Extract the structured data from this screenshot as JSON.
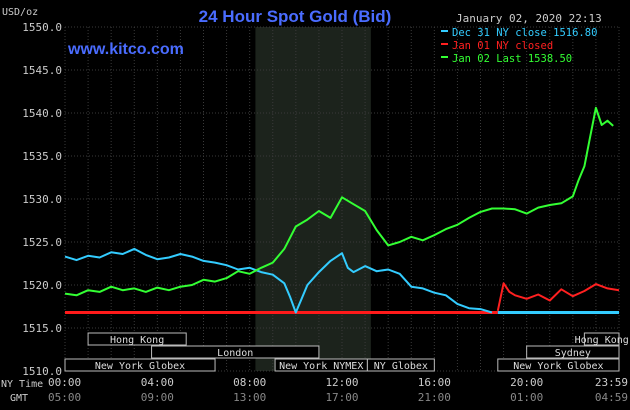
{
  "chart_data": {
    "type": "line",
    "title": "24 Hour Spot Gold (Bid)",
    "website": "www.kitco.com",
    "date_label": "January 02, 2020 22:13",
    "y_unit": "USD/oz",
    "ylim": [
      1510.0,
      1550.0
    ],
    "y_ticks": [
      "1550.0",
      "1545.0",
      "1540.0",
      "1535.0",
      "1530.0",
      "1525.0",
      "1520.0",
      "1515.0",
      "1510.0"
    ],
    "x_row_labels": {
      "ny": "NY Time",
      "gmt": "GMT"
    },
    "x_ticks_ny": [
      "00:00",
      "04:00",
      "08:00",
      "12:00",
      "16:00",
      "20:00",
      "23:59"
    ],
    "x_ticks_gmt": [
      "05:00",
      "09:00",
      "13:00",
      "17:00",
      "21:00",
      "01:00",
      "04:59"
    ],
    "legend": [
      {
        "text": "Dec 31 NY close 1516.80",
        "color": "#33ccff"
      },
      {
        "text": "Jan 01 NY closed",
        "color": "#ff2020"
      },
      {
        "text": "Jan 02 Last 1538.50",
        "color": "#33ff33"
      }
    ],
    "sessions": [
      {
        "label": "Hong Kong",
        "start": 2.0,
        "end": 10.5
      },
      {
        "label": "London",
        "start": 7.5,
        "end": 22.0
      },
      {
        "label": "New York Globex",
        "start": 0.0,
        "end": 13.0
      },
      {
        "label": "New York NYMEX",
        "start": 18.2,
        "end": 26.2
      },
      {
        "label": "NY Globex",
        "start": 26.2,
        "end": 32.0
      },
      {
        "label": "Hong Kong",
        "start": 45.0,
        "end": 48.0
      },
      {
        "label": "Sydney",
        "start": 40.0,
        "end": 48.0
      },
      {
        "label": "New York Globex",
        "start": 37.5,
        "end": 48.0
      }
    ],
    "highlight_range": [
      16.5,
      26.5
    ],
    "series": [
      {
        "name": "Dec 31",
        "color": "#33ccff",
        "points": [
          [
            0,
            1523.3
          ],
          [
            1,
            1522.9
          ],
          [
            2,
            1523.4
          ],
          [
            3,
            1523.2
          ],
          [
            4,
            1523.8
          ],
          [
            5,
            1523.6
          ],
          [
            6,
            1524.2
          ],
          [
            7,
            1523.5
          ],
          [
            8,
            1523.0
          ],
          [
            9,
            1523.2
          ],
          [
            10,
            1523.6
          ],
          [
            11,
            1523.3
          ],
          [
            12,
            1522.8
          ],
          [
            13,
            1522.6
          ],
          [
            14,
            1522.3
          ],
          [
            15,
            1521.8
          ],
          [
            16,
            1522.0
          ],
          [
            17,
            1521.5
          ],
          [
            18,
            1521.2
          ],
          [
            19,
            1520.2
          ],
          [
            19.5,
            1518.6
          ],
          [
            20,
            1516.8
          ],
          [
            20.5,
            1518.4
          ],
          [
            21,
            1520.0
          ],
          [
            22,
            1521.5
          ],
          [
            23,
            1522.8
          ],
          [
            24,
            1523.7
          ],
          [
            24.5,
            1522.0
          ],
          [
            25,
            1521.5
          ],
          [
            26,
            1522.2
          ],
          [
            27,
            1521.6
          ],
          [
            28,
            1521.8
          ],
          [
            29,
            1521.3
          ],
          [
            30,
            1519.8
          ],
          [
            31,
            1519.6
          ],
          [
            32,
            1519.1
          ],
          [
            33,
            1518.8
          ],
          [
            34,
            1517.8
          ],
          [
            35,
            1517.3
          ],
          [
            36,
            1517.2
          ],
          [
            37,
            1516.8
          ]
        ]
      },
      {
        "name": "Jan 01",
        "color": "#ff2020",
        "points": [
          [
            37.5,
            1517.0
          ],
          [
            38,
            1520.2
          ],
          [
            38.5,
            1519.2
          ],
          [
            39,
            1518.8
          ],
          [
            40,
            1518.4
          ],
          [
            41,
            1518.9
          ],
          [
            42,
            1518.2
          ],
          [
            43,
            1519.5
          ],
          [
            44,
            1518.7
          ],
          [
            45,
            1519.3
          ],
          [
            46,
            1520.1
          ],
          [
            47,
            1519.6
          ],
          [
            48,
            1519.4
          ]
        ]
      },
      {
        "name": "Jan 02",
        "color": "#33ff33",
        "points": [
          [
            0,
            1519.0
          ],
          [
            1,
            1518.8
          ],
          [
            2,
            1519.4
          ],
          [
            3,
            1519.2
          ],
          [
            4,
            1519.8
          ],
          [
            5,
            1519.4
          ],
          [
            6,
            1519.6
          ],
          [
            7,
            1519.2
          ],
          [
            8,
            1519.7
          ],
          [
            9,
            1519.4
          ],
          [
            10,
            1519.8
          ],
          [
            11,
            1520.0
          ],
          [
            12,
            1520.6
          ],
          [
            13,
            1520.4
          ],
          [
            14,
            1520.8
          ],
          [
            15,
            1521.6
          ],
          [
            16,
            1521.3
          ],
          [
            17,
            1522.0
          ],
          [
            18,
            1522.6
          ],
          [
            19,
            1524.2
          ],
          [
            20,
            1526.8
          ],
          [
            21,
            1527.6
          ],
          [
            22,
            1528.6
          ],
          [
            23,
            1527.8
          ],
          [
            24,
            1530.2
          ],
          [
            25,
            1529.4
          ],
          [
            26,
            1528.6
          ],
          [
            27,
            1526.4
          ],
          [
            28,
            1524.6
          ],
          [
            29,
            1525.0
          ],
          [
            30,
            1525.6
          ],
          [
            31,
            1525.2
          ],
          [
            32,
            1525.8
          ],
          [
            33,
            1526.5
          ],
          [
            34,
            1527.0
          ],
          [
            35,
            1527.8
          ],
          [
            36,
            1528.5
          ],
          [
            37,
            1528.9
          ],
          [
            38,
            1528.9
          ],
          [
            39,
            1528.8
          ],
          [
            40,
            1528.3
          ],
          [
            41,
            1529.0
          ],
          [
            42,
            1529.3
          ],
          [
            43,
            1529.5
          ],
          [
            44,
            1530.3
          ],
          [
            44.5,
            1532.2
          ],
          [
            45,
            1533.8
          ],
          [
            45.5,
            1537.2
          ],
          [
            46,
            1540.6
          ],
          [
            46.5,
            1538.6
          ],
          [
            47,
            1539.1
          ],
          [
            47.5,
            1538.5
          ]
        ]
      }
    ],
    "baseline": {
      "value": 1516.8,
      "colors": [
        "#ff1a1a",
        "#33ccff"
      ],
      "split_at": 37.5
    }
  }
}
